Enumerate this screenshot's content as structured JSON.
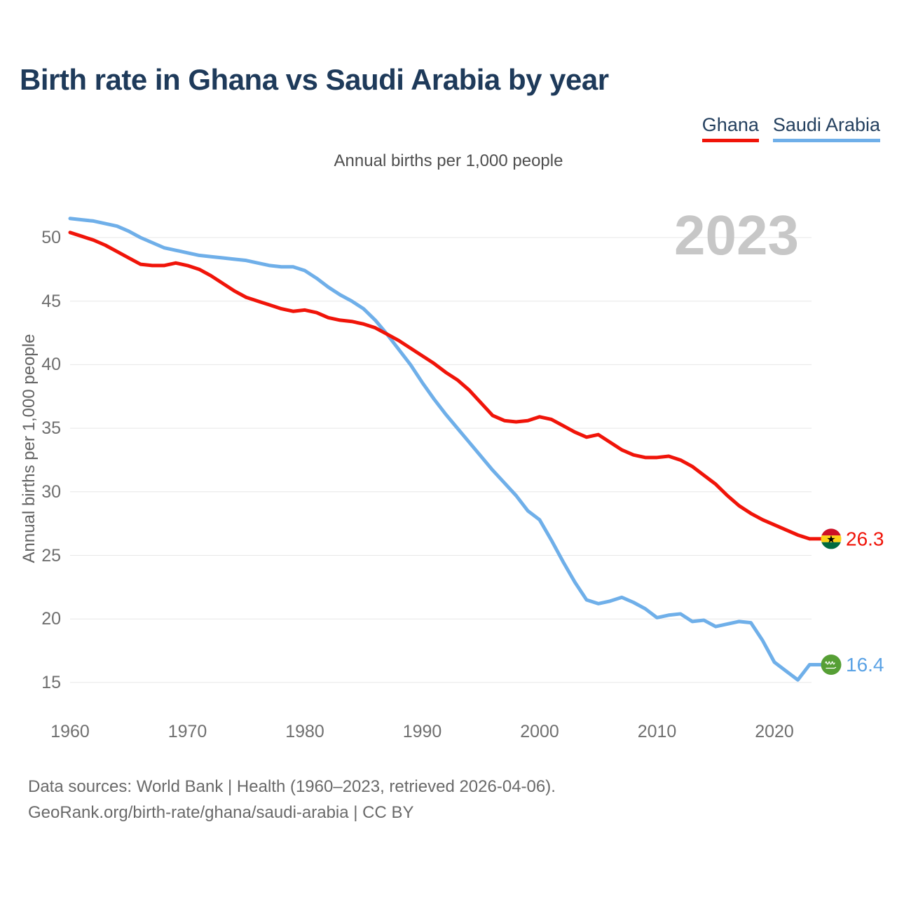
{
  "title": "Birth rate in Ghana vs Saudi Arabia by year",
  "subtitle": "Annual births per 1,000 people",
  "watermark": "2023",
  "legend": [
    {
      "label": "Ghana",
      "color": "#f01409"
    },
    {
      "label": "Saudi Arabia",
      "color": "#6fafe9"
    }
  ],
  "y_axis": {
    "label": "Annual births per 1,000 people",
    "ticks": [
      50,
      45,
      40,
      35,
      30,
      25,
      20,
      15
    ]
  },
  "x_axis": {
    "ticks": [
      1960,
      1970,
      1980,
      1990,
      2000,
      2010,
      2020
    ]
  },
  "end_labels": [
    {
      "series": "Ghana",
      "value": "26.3",
      "color": "#f01409"
    },
    {
      "series": "Saudi Arabia",
      "value": "16.4",
      "color": "#5aa2e5"
    }
  ],
  "footer": {
    "line1": "Data sources: World Bank | Health (1960–2023, retrieved 2026-04-06).",
    "line2": "GeoRank.org/birth-rate/ghana/saudi-arabia | CC BY"
  },
  "chart_data": {
    "type": "line",
    "title": "Birth rate in Ghana vs Saudi Arabia by year",
    "xlabel": "",
    "ylabel": "Annual births per 1,000 people",
    "xlim": [
      1960,
      2023
    ],
    "ylim": [
      13.5,
      53
    ],
    "grid": "horizontal",
    "legend_position": "top-right",
    "x": [
      1960,
      1961,
      1962,
      1963,
      1964,
      1965,
      1966,
      1967,
      1968,
      1969,
      1970,
      1971,
      1972,
      1973,
      1974,
      1975,
      1976,
      1977,
      1978,
      1979,
      1980,
      1981,
      1982,
      1983,
      1984,
      1985,
      1986,
      1987,
      1988,
      1989,
      1990,
      1991,
      1992,
      1993,
      1994,
      1995,
      1996,
      1997,
      1998,
      1999,
      2000,
      2001,
      2002,
      2003,
      2004,
      2005,
      2006,
      2007,
      2008,
      2009,
      2010,
      2011,
      2012,
      2013,
      2014,
      2015,
      2016,
      2017,
      2018,
      2019,
      2020,
      2021,
      2022,
      2023
    ],
    "series": [
      {
        "name": "Ghana",
        "color": "#f01409",
        "values": [
          50.4,
          50.1,
          49.8,
          49.4,
          48.9,
          48.4,
          47.9,
          47.8,
          47.8,
          48.0,
          47.8,
          47.5,
          47.0,
          46.4,
          45.8,
          45.3,
          45.0,
          44.7,
          44.4,
          44.2,
          44.3,
          44.1,
          43.7,
          43.5,
          43.4,
          43.2,
          42.9,
          42.4,
          41.9,
          41.3,
          40.7,
          40.1,
          39.4,
          38.8,
          38.0,
          37.0,
          36.0,
          35.6,
          35.5,
          35.6,
          35.9,
          35.7,
          35.2,
          34.7,
          34.3,
          34.5,
          33.9,
          33.3,
          32.9,
          32.7,
          32.7,
          32.8,
          32.5,
          32.0,
          31.3,
          30.6,
          29.7,
          28.9,
          28.3,
          27.8,
          27.4,
          27.0,
          26.6,
          26.3
        ]
      },
      {
        "name": "Saudi Arabia",
        "color": "#6fafe9",
        "values": [
          51.5,
          51.4,
          51.3,
          51.1,
          50.9,
          50.5,
          50.0,
          49.6,
          49.2,
          49.0,
          48.8,
          48.6,
          48.5,
          48.4,
          48.3,
          48.2,
          48.0,
          47.8,
          47.7,
          47.7,
          47.4,
          46.8,
          46.1,
          45.5,
          45.0,
          44.4,
          43.5,
          42.4,
          41.2,
          40.0,
          38.6,
          37.3,
          36.1,
          35.0,
          33.9,
          32.8,
          31.7,
          30.7,
          29.7,
          28.5,
          27.8,
          26.2,
          24.5,
          22.9,
          21.5,
          21.2,
          21.4,
          21.7,
          21.3,
          20.8,
          20.1,
          20.3,
          20.4,
          19.8,
          19.9,
          19.4,
          19.6,
          19.8,
          19.7,
          18.3,
          16.6,
          15.9,
          15.2,
          16.4
        ]
      }
    ]
  }
}
